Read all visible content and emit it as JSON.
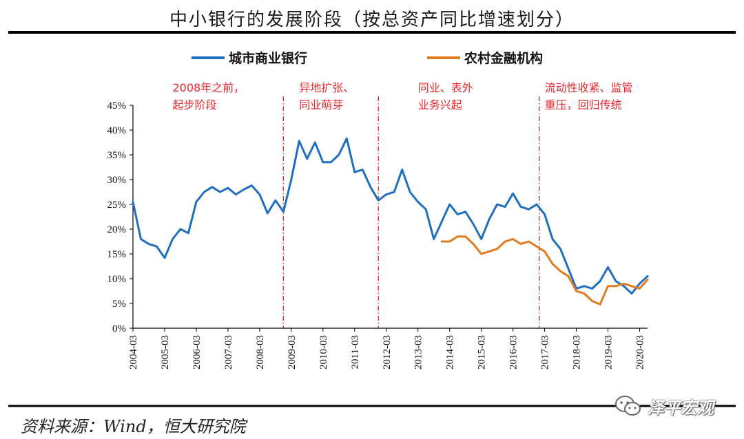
{
  "title": "中小银行的发展阶段（按总资产同比增速划分）",
  "source": "资料来源：Wind，恒大研究院",
  "watermark": {
    "text": "泽平宏观",
    "icon": "wechat-icon"
  },
  "colors": {
    "city_bank": "#1f6fbf",
    "rural": "#e07b20",
    "annotation": "#e8262d",
    "rule": "#000000"
  },
  "chart_data": {
    "type": "line",
    "title": "中小银行的发展阶段（按总资产同比增速划分）",
    "xlabel": "",
    "ylabel": "",
    "ylim": [
      0,
      45
    ],
    "yticks": [
      0,
      5,
      10,
      15,
      20,
      25,
      30,
      35,
      40,
      45
    ],
    "ytick_labels": [
      "0%",
      "5%",
      "10%",
      "15%",
      "20%",
      "25%",
      "30%",
      "35%",
      "40%",
      "45%"
    ],
    "xticks": [
      "2004-03",
      "2005-03",
      "2006-03",
      "2007-03",
      "2008-03",
      "2009-03",
      "2010-03",
      "2011-03",
      "2012-03",
      "2013-03",
      "2014-03",
      "2015-03",
      "2016-03",
      "2017-03",
      "2018-03",
      "2019-03",
      "2020-03"
    ],
    "xlim": [
      "2004-03",
      "2020-06"
    ],
    "legend_position": "top",
    "grid": false,
    "series": [
      {
        "name": "城市商业银行",
        "color": "#1f6fbf",
        "points": [
          [
            "2004-03",
            25.5
          ],
          [
            "2004-06",
            18.0
          ],
          [
            "2004-09",
            17.0
          ],
          [
            "2004-12",
            16.5
          ],
          [
            "2005-03",
            14.2
          ],
          [
            "2005-06",
            18.0
          ],
          [
            "2005-09",
            20.0
          ],
          [
            "2005-12",
            19.2
          ],
          [
            "2006-03",
            25.5
          ],
          [
            "2006-06",
            27.5
          ],
          [
            "2006-09",
            28.5
          ],
          [
            "2006-12",
            27.5
          ],
          [
            "2007-03",
            28.3
          ],
          [
            "2007-06",
            27.0
          ],
          [
            "2007-09",
            28.0
          ],
          [
            "2007-12",
            28.8
          ],
          [
            "2008-03",
            27.0
          ],
          [
            "2008-06",
            23.2
          ],
          [
            "2008-09",
            25.8
          ],
          [
            "2008-12",
            23.5
          ],
          [
            "2009-03",
            30.0
          ],
          [
            "2009-06",
            37.8
          ],
          [
            "2009-09",
            34.2
          ],
          [
            "2009-12",
            37.5
          ],
          [
            "2010-03",
            33.5
          ],
          [
            "2010-06",
            33.5
          ],
          [
            "2010-09",
            35.0
          ],
          [
            "2010-12",
            38.3
          ],
          [
            "2011-03",
            31.5
          ],
          [
            "2011-06",
            32.0
          ],
          [
            "2011-09",
            28.5
          ],
          [
            "2011-12",
            25.8
          ],
          [
            "2012-03",
            27.0
          ],
          [
            "2012-06",
            27.5
          ],
          [
            "2012-09",
            32.0
          ],
          [
            "2012-12",
            27.5
          ],
          [
            "2013-03",
            25.5
          ],
          [
            "2013-06",
            24.0
          ],
          [
            "2013-09",
            18.0
          ],
          [
            "2013-12",
            21.5
          ],
          [
            "2014-03",
            25.0
          ],
          [
            "2014-06",
            23.0
          ],
          [
            "2014-09",
            23.5
          ],
          [
            "2014-12",
            21.0
          ],
          [
            "2015-03",
            18.0
          ],
          [
            "2015-06",
            22.0
          ],
          [
            "2015-09",
            25.0
          ],
          [
            "2015-12",
            24.5
          ],
          [
            "2016-03",
            27.2
          ],
          [
            "2016-06",
            24.5
          ],
          [
            "2016-09",
            24.0
          ],
          [
            "2016-12",
            25.0
          ],
          [
            "2017-03",
            23.0
          ],
          [
            "2017-06",
            18.0
          ],
          [
            "2017-09",
            16.0
          ],
          [
            "2017-12",
            12.0
          ],
          [
            "2018-03",
            8.0
          ],
          [
            "2018-06",
            8.5
          ],
          [
            "2018-09",
            8.0
          ],
          [
            "2018-12",
            9.5
          ],
          [
            "2019-03",
            12.3
          ],
          [
            "2019-06",
            9.5
          ],
          [
            "2019-09",
            8.5
          ],
          [
            "2019-12",
            7.0
          ],
          [
            "2020-03",
            9.0
          ],
          [
            "2020-06",
            10.5
          ]
        ]
      },
      {
        "name": "农村金融机构",
        "color": "#e07b20",
        "points": [
          [
            "2013-12",
            17.5
          ],
          [
            "2014-03",
            17.5
          ],
          [
            "2014-06",
            18.5
          ],
          [
            "2014-09",
            18.5
          ],
          [
            "2014-12",
            17.0
          ],
          [
            "2015-03",
            15.0
          ],
          [
            "2015-06",
            15.5
          ],
          [
            "2015-09",
            16.0
          ],
          [
            "2015-12",
            17.5
          ],
          [
            "2016-03",
            18.0
          ],
          [
            "2016-06",
            17.0
          ],
          [
            "2016-09",
            17.5
          ],
          [
            "2016-12",
            16.5
          ],
          [
            "2017-03",
            15.5
          ],
          [
            "2017-06",
            13.0
          ],
          [
            "2017-09",
            11.5
          ],
          [
            "2017-12",
            10.5
          ],
          [
            "2018-03",
            7.5
          ],
          [
            "2018-06",
            7.0
          ],
          [
            "2018-09",
            5.5
          ],
          [
            "2018-12",
            4.8
          ],
          [
            "2019-03",
            8.5
          ],
          [
            "2019-06",
            8.5
          ],
          [
            "2019-09",
            9.0
          ],
          [
            "2019-12",
            8.5
          ],
          [
            "2020-03",
            8.0
          ],
          [
            "2020-06",
            9.8
          ]
        ]
      }
    ],
    "phase_dividers": [
      "2008-12",
      "2011-12",
      "2017-01"
    ],
    "annotations": [
      {
        "lines": [
          "2008年之前，",
          "起步阶段"
        ],
        "anchor": "2005-06"
      },
      {
        "lines": [
          "异地扩张、",
          "同业萌芽"
        ],
        "anchor": "2009-06"
      },
      {
        "lines": [
          "同业、表外",
          "业务兴起"
        ],
        "anchor": "2013-03"
      },
      {
        "lines": [
          "流动性收紧、监管",
          "重压，回归传统"
        ],
        "anchor": "2017-03"
      }
    ]
  }
}
